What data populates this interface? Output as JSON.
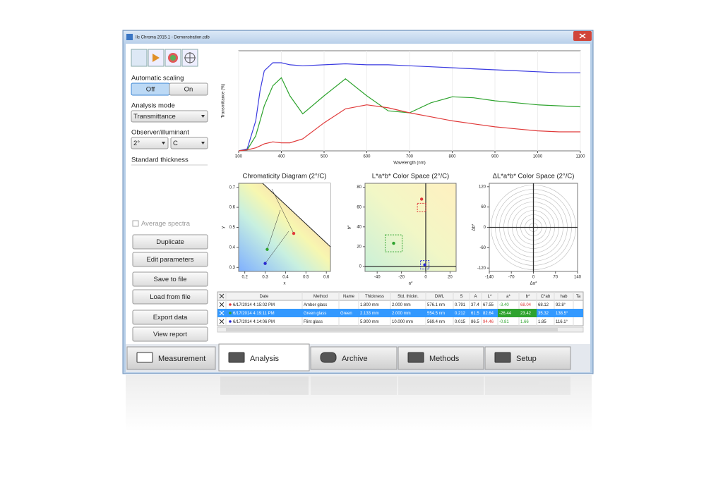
{
  "window": {
    "title": "Ilc Chroma 2015.1 - Demonstration.cdb"
  },
  "sidebar": {
    "automatic_scaling": {
      "label": "Automatic scaling",
      "options": [
        "Off",
        "On"
      ]
    },
    "analysis_mode": {
      "label": "Analysis mode",
      "value": "Transmittance"
    },
    "observer": {
      "label": "Observer/illuminant",
      "values": [
        "2°",
        "C"
      ]
    },
    "standard_thickness": "Standard thickness",
    "average_spectra": "Average spectra",
    "buttons": [
      "Duplicate",
      "Edit parameters",
      "Save to file",
      "Load from file",
      "Export data",
      "View report"
    ]
  },
  "spectrum": {
    "type": "line",
    "xlabel": "Wavelength (nm)",
    "ylabel": "Transmittance (%)",
    "x": [
      300,
      320,
      340,
      350,
      360,
      380,
      400,
      420,
      450,
      500,
      550,
      600,
      650,
      700,
      750,
      800,
      850,
      900,
      950,
      1000,
      1050,
      1100
    ],
    "series": [
      {
        "color": "#3a3ae0",
        "values": [
          0,
          2,
          30,
          60,
          80,
          88,
          88,
          86,
          85,
          86,
          87,
          86,
          86,
          85,
          84,
          83,
          82,
          81,
          80,
          79,
          78,
          78
        ]
      },
      {
        "color": "#2ea32e",
        "values": [
          0,
          1,
          15,
          30,
          45,
          65,
          73,
          55,
          37,
          55,
          72,
          55,
          40,
          38,
          48,
          54,
          53,
          50,
          48,
          46,
          45,
          44
        ]
      },
      {
        "color": "#e03a3a",
        "values": [
          0,
          1,
          3,
          5,
          7,
          9,
          8,
          8,
          12,
          28,
          42,
          46,
          43,
          38,
          34,
          30,
          27,
          24,
          22,
          20,
          19,
          19
        ]
      }
    ],
    "xlim": [
      300,
      1100
    ],
    "ylim": [
      0,
      100
    ],
    "xticks": [
      300,
      400,
      500,
      600,
      700,
      800,
      900,
      1000,
      1100
    ]
  },
  "chromaticity": {
    "title": "Chromaticity Diagram (2°/C)",
    "xlabel": "x",
    "ylabel": "y",
    "xlim": [
      0.17,
      0.62
    ],
    "ylim": [
      0.28,
      0.72
    ],
    "xticks": [
      0.2,
      0.3,
      0.4,
      0.5,
      0.6
    ],
    "yticks": [
      0.3,
      0.4,
      0.5,
      0.6,
      0.7
    ],
    "points": [
      {
        "color": "#e03a3a",
        "x": 0.44,
        "y": 0.47
      },
      {
        "color": "#2ea32e",
        "x": 0.31,
        "y": 0.39
      },
      {
        "color": "#2a2ad0",
        "x": 0.3,
        "y": 0.32
      }
    ]
  },
  "lab": {
    "title": "L*a*b* Color Space (2°/C)",
    "xlabel": "a*",
    "ylabel": "b*",
    "xlim": [
      -50,
      25
    ],
    "ylim": [
      -5,
      84
    ],
    "xticks": [
      -40,
      -20,
      0,
      20
    ],
    "yticks": [
      0,
      20,
      40,
      60,
      80
    ],
    "points": [
      {
        "color": "#e03a3a",
        "x": -3.4,
        "y": 68.04
      },
      {
        "color": "#2ea32e",
        "x": -26.44,
        "y": 23.42
      },
      {
        "color": "#2a2ad0",
        "x": -0.81,
        "y": 1.66
      }
    ]
  },
  "delta_lab": {
    "title": "ΔL*a*b* Color Space (2°/C)",
    "xlabel": "Δa*",
    "ylabel": "Δb*",
    "xlim": [
      -140,
      140
    ],
    "ylim": [
      -130,
      130
    ],
    "xticks": [
      -140,
      -70,
      0,
      70,
      140
    ],
    "yticks": [
      -120,
      -60,
      0,
      60,
      120
    ]
  },
  "table": {
    "headers": [
      "Date",
      "Method",
      "Name",
      "Thickness",
      "Std. thickn.",
      "DWL",
      "S",
      "A",
      "L*",
      "a*",
      "b*",
      "C*ab",
      "hab",
      "Ta"
    ],
    "rows": [
      {
        "date": "6/17/2014 4:15:02 PM",
        "method": "Amber glass",
        "thickness": "1.800 mm",
        "std": "2.000 mm",
        "dwl": "576.1 nm",
        "s": "0.791",
        "a": "37.4",
        "l": "67.55",
        "astar": "-3.40",
        "bstar": "68.04",
        "cab": "68.12",
        "hab": "92.8°"
      },
      {
        "date": "6/17/2014 4:19:11 PM",
        "method": "Green glass",
        "name": "Green",
        "thickness": "2.133 mm",
        "std": "2.000 mm",
        "dwl": "554.5 nm",
        "s": "0.212",
        "a": "61.5",
        "l": "82.64",
        "astar": "-26.44",
        "bstar": "23.42",
        "cab": "35.32",
        "hab": "138.5°"
      },
      {
        "date": "6/17/2014 4:14:06 PM",
        "method": "Flint glass",
        "thickness": "5.900 mm",
        "std": "10.000 mm",
        "dwl": "569.4 nm",
        "s": "0.015",
        "a": "86.5",
        "l": "94.46",
        "astar": "-0.81",
        "bstar": "1.66",
        "cab": "1.85",
        "hab": "116.1°"
      }
    ]
  },
  "tabs": [
    "Measurement",
    "Analysis",
    "Archive",
    "Methods",
    "Setup"
  ]
}
